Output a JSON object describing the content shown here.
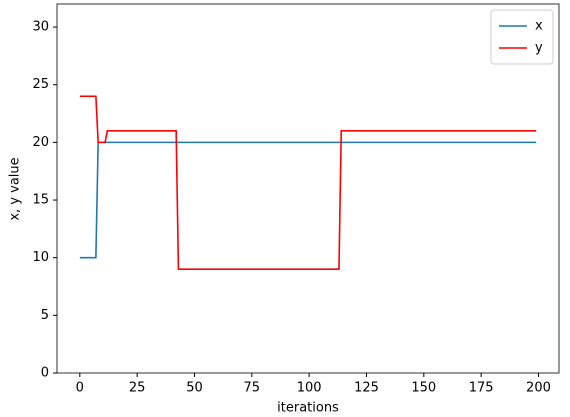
{
  "chart_data": {
    "type": "line",
    "xlabel": "iterations",
    "ylabel": "x, y value",
    "x": [
      0,
      1,
      2,
      3,
      4,
      5,
      6,
      7,
      8,
      9,
      10,
      11,
      12,
      13,
      14,
      15,
      16,
      17,
      18,
      19,
      20,
      21,
      22,
      23,
      24,
      25,
      26,
      27,
      28,
      29,
      30,
      31,
      32,
      33,
      34,
      35,
      36,
      37,
      38,
      39,
      40,
      41,
      42,
      43,
      44,
      45,
      46,
      47,
      48,
      49,
      50,
      51,
      52,
      53,
      54,
      55,
      56,
      57,
      58,
      59,
      60,
      61,
      62,
      63,
      64,
      65,
      66,
      67,
      68,
      69,
      70,
      71,
      72,
      73,
      74,
      75,
      76,
      77,
      78,
      79,
      80,
      81,
      82,
      83,
      84,
      85,
      86,
      87,
      88,
      89,
      90,
      91,
      92,
      93,
      94,
      95,
      96,
      97,
      98,
      99,
      100,
      101,
      102,
      103,
      104,
      105,
      106,
      107,
      108,
      109,
      110,
      111,
      112,
      113,
      114,
      115,
      116,
      117,
      118,
      119,
      120,
      121,
      122,
      123,
      124,
      125,
      126,
      127,
      128,
      129,
      130,
      131,
      132,
      133,
      134,
      135,
      136,
      137,
      138,
      139,
      140,
      141,
      142,
      143,
      144,
      145,
      146,
      147,
      148,
      149,
      150,
      151,
      152,
      153,
      154,
      155,
      156,
      157,
      158,
      159,
      160,
      161,
      162,
      163,
      164,
      165,
      166,
      167,
      168,
      169,
      170,
      171,
      172,
      173,
      174,
      175,
      176,
      177,
      178,
      179,
      180,
      181,
      182,
      183,
      184,
      185,
      186,
      187,
      188,
      189,
      190,
      191,
      192,
      193,
      194,
      195,
      196,
      197,
      198,
      199
    ],
    "series": [
      {
        "name": "x",
        "color": "#1f77b4",
        "values": [
          10,
          10,
          10,
          10,
          10,
          10,
          10,
          10,
          20,
          20,
          20,
          20,
          20,
          20,
          20,
          20,
          20,
          20,
          20,
          20,
          20,
          20,
          20,
          20,
          20,
          20,
          20,
          20,
          20,
          20,
          20,
          20,
          20,
          20,
          20,
          20,
          20,
          20,
          20,
          20,
          20,
          20,
          20,
          20,
          20,
          20,
          20,
          20,
          20,
          20,
          20,
          20,
          20,
          20,
          20,
          20,
          20,
          20,
          20,
          20,
          20,
          20,
          20,
          20,
          20,
          20,
          20,
          20,
          20,
          20,
          20,
          20,
          20,
          20,
          20,
          20,
          20,
          20,
          20,
          20,
          20,
          20,
          20,
          20,
          20,
          20,
          20,
          20,
          20,
          20,
          20,
          20,
          20,
          20,
          20,
          20,
          20,
          20,
          20,
          20,
          20,
          20,
          20,
          20,
          20,
          20,
          20,
          20,
          20,
          20,
          20,
          20,
          20,
          20,
          20,
          20,
          20,
          20,
          20,
          20,
          20,
          20,
          20,
          20,
          20,
          20,
          20,
          20,
          20,
          20,
          20,
          20,
          20,
          20,
          20,
          20,
          20,
          20,
          20,
          20,
          20,
          20,
          20,
          20,
          20,
          20,
          20,
          20,
          20,
          20,
          20,
          20,
          20,
          20,
          20,
          20,
          20,
          20,
          20,
          20,
          20,
          20,
          20,
          20,
          20,
          20,
          20,
          20,
          20,
          20,
          20,
          20,
          20,
          20,
          20,
          20,
          20,
          20,
          20,
          20,
          20,
          20,
          20,
          20,
          20,
          20,
          20,
          20,
          20,
          20,
          20,
          20,
          20,
          20,
          20,
          20,
          20,
          20,
          20,
          20
        ]
      },
      {
        "name": "y",
        "color": "#ff0000",
        "values": [
          24,
          24,
          24,
          24,
          24,
          24,
          24,
          24,
          20,
          20,
          20,
          20,
          21,
          21,
          21,
          21,
          21,
          21,
          21,
          21,
          21,
          21,
          21,
          21,
          21,
          21,
          21,
          21,
          21,
          21,
          21,
          21,
          21,
          21,
          21,
          21,
          21,
          21,
          21,
          21,
          21,
          21,
          21,
          9,
          9,
          9,
          9,
          9,
          9,
          9,
          9,
          9,
          9,
          9,
          9,
          9,
          9,
          9,
          9,
          9,
          9,
          9,
          9,
          9,
          9,
          9,
          9,
          9,
          9,
          9,
          9,
          9,
          9,
          9,
          9,
          9,
          9,
          9,
          9,
          9,
          9,
          9,
          9,
          9,
          9,
          9,
          9,
          9,
          9,
          9,
          9,
          9,
          9,
          9,
          9,
          9,
          9,
          9,
          9,
          9,
          9,
          9,
          9,
          9,
          9,
          9,
          9,
          9,
          9,
          9,
          9,
          9,
          9,
          9,
          21,
          21,
          21,
          21,
          21,
          21,
          21,
          21,
          21,
          21,
          21,
          21,
          21,
          21,
          21,
          21,
          21,
          21,
          21,
          21,
          21,
          21,
          21,
          21,
          21,
          21,
          21,
          21,
          21,
          21,
          21,
          21,
          21,
          21,
          21,
          21,
          21,
          21,
          21,
          21,
          21,
          21,
          21,
          21,
          21,
          21,
          21,
          21,
          21,
          21,
          21,
          21,
          21,
          21,
          21,
          21,
          21,
          21,
          21,
          21,
          21,
          21,
          21,
          21,
          21,
          21,
          21,
          21,
          21,
          21,
          21,
          21,
          21,
          21,
          21,
          21,
          21,
          21,
          21,
          21,
          21,
          21,
          21,
          21,
          21,
          21
        ]
      }
    ],
    "xlim": [
      -9.95,
      208.95
    ],
    "xticks": [
      0,
      25,
      50,
      75,
      100,
      125,
      150,
      175,
      200
    ],
    "ylim": [
      0,
      32
    ],
    "yticks": [
      0,
      5,
      10,
      15,
      20,
      25,
      30
    ],
    "grid": false,
    "legend": "upper right"
  }
}
